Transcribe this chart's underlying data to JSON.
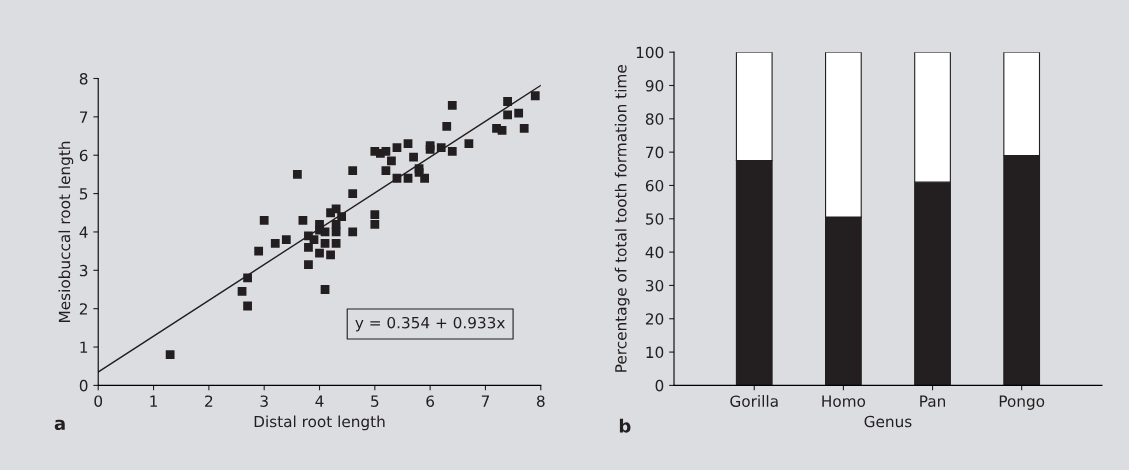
{
  "chart_data": [
    {
      "type": "scatter",
      "xlabel": "Distal root length",
      "ylabel": "Mesiobuccal root length",
      "xlim": [
        0,
        8
      ],
      "ylim": [
        0,
        8
      ],
      "xticks": [
        0,
        1,
        2,
        3,
        4,
        5,
        6,
        7,
        8
      ],
      "yticks": [
        0,
        1,
        2,
        3,
        4,
        5,
        6,
        7,
        8
      ],
      "grid": false,
      "annotations": [
        "a",
        "y = 0.354 + 0.933x"
      ],
      "series": [
        {
          "type": "scatter",
          "marker": "square",
          "color": "#231f20",
          "x": [
            1.3,
            2.6,
            2.7,
            2.7,
            2.9,
            3.0,
            3.2,
            3.4,
            3.6,
            3.7,
            3.8,
            3.8,
            3.8,
            3.9,
            4.0,
            4.0,
            4.0,
            4.1,
            4.1,
            4.1,
            4.2,
            4.2,
            4.3,
            4.3,
            4.3,
            4.3,
            4.4,
            4.6,
            4.6,
            4.6,
            5.0,
            5.0,
            5.0,
            5.1,
            5.2,
            5.2,
            5.3,
            5.4,
            5.4,
            5.6,
            5.6,
            5.7,
            5.8,
            5.8,
            5.9,
            6.0,
            6.0,
            6.2,
            6.3,
            6.4,
            6.4,
            6.7,
            7.2,
            7.3,
            7.4,
            7.4,
            7.6,
            7.7,
            7.9
          ],
          "values": [
            0.8,
            2.45,
            2.8,
            2.07,
            3.5,
            4.3,
            3.7,
            3.8,
            5.5,
            4.3,
            3.9,
            3.6,
            3.15,
            3.8,
            4.2,
            4.05,
            3.45,
            4.0,
            3.7,
            2.5,
            4.5,
            3.4,
            4.6,
            4.2,
            4.0,
            3.7,
            4.4,
            5.6,
            5.0,
            4.0,
            6.1,
            4.45,
            4.2,
            6.05,
            6.1,
            5.6,
            5.85,
            6.2,
            5.4,
            6.3,
            5.4,
            5.95,
            5.65,
            5.55,
            5.4,
            6.25,
            6.15,
            6.2,
            6.75,
            7.3,
            6.1,
            6.3,
            6.7,
            6.65,
            7.4,
            7.05,
            7.1,
            6.7,
            7.55
          ]
        },
        {
          "type": "line",
          "marker": "none",
          "color": "#231f20",
          "x": [
            0,
            8
          ],
          "values": [
            0.35,
            7.82
          ]
        }
      ]
    },
    {
      "type": "bar",
      "stacked": true,
      "xlabel": "Genus",
      "ylabel": "Percentage of total tooth formation time",
      "ylim": [
        0,
        100
      ],
      "yticks": [
        0,
        10,
        20,
        30,
        40,
        50,
        60,
        70,
        80,
        90,
        100
      ],
      "grid": false,
      "annotations": [
        "b"
      ],
      "categories": [
        "Gorilla",
        "Homo",
        "Pan",
        "Pongo"
      ],
      "series": [
        {
          "color": "#231f20",
          "values": [
            67.5,
            50.5,
            61,
            69
          ]
        },
        {
          "color": "#ffffff",
          "values": [
            32.5,
            49.5,
            39,
            31
          ]
        }
      ]
    }
  ]
}
